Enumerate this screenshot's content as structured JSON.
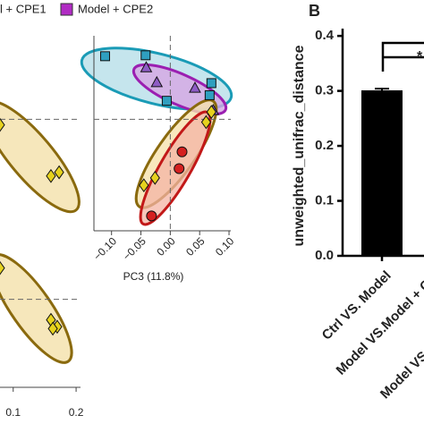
{
  "legend": [
    {
      "name": "l + CPE1"
    },
    {
      "name": "Model +  CPE2",
      "color": "#b12cc4"
    }
  ],
  "chart_data": [
    {
      "type": "scatter",
      "xlim": [
        0.079,
        0.207
      ],
      "ylim": [
        -0.12,
        0.09
      ],
      "zero_lines": true,
      "series": [
        {
          "marker": "diamond",
          "color": "#e6d21e",
          "x": [
            0.079,
            0.16,
            0.173
          ],
          "y": [
            -0.006,
            -0.061,
            -0.057
          ]
        }
      ]
    },
    {
      "type": "scatter",
      "xlim": [
        0.079,
        0.207
      ],
      "ylim": [
        -0.09,
        0.05
      ],
      "zero_lines": true,
      "xticks": [
        0.1,
        0.2
      ],
      "series": [
        {
          "marker": "diamond",
          "color": "#e6d21e",
          "x": [
            0.079,
            0.16,
            0.17,
            0.163
          ],
          "y": [
            0.032,
            -0.021,
            -0.028,
            -0.03
          ]
        }
      ]
    },
    {
      "type": "scatter",
      "xlabel": "PC3 (11.8%)",
      "xlim": [
        -0.13,
        0.103
      ],
      "ylim": [
        -0.12,
        0.09
      ],
      "zero_lines": true,
      "xticks": [
        {
          "value": -0.1,
          "label": "−0.10"
        },
        {
          "value": -0.05,
          "label": "−0.05"
        },
        {
          "value": 0,
          "label": "0.00"
        },
        0.05,
        {
          "value": 0.1,
          "label": "0.10"
        }
      ],
      "series": [
        {
          "marker": "square",
          "color": "#2f9fbf",
          "x": [
            -0.111,
            -0.042,
            -0.006,
            0.07,
            0.067
          ],
          "y": [
            0.068,
            0.069,
            0.02,
            0.039,
            0.026
          ]
        },
        {
          "marker": "triangle",
          "color": "#8e5cc4",
          "x": [
            -0.041,
            -0.023,
            0.042,
            0.073
          ],
          "y": [
            0.056,
            0.04,
            0.034,
            0.01
          ]
        },
        {
          "marker": "circle",
          "color": "#d42020",
          "x": [
            0.02,
            0.015,
            -0.032
          ],
          "y": [
            -0.035,
            -0.053,
            -0.104
          ]
        },
        {
          "marker": "diamond",
          "color": "#e6d21e",
          "x": [
            -0.045,
            -0.026,
            0.061,
            0.07
          ],
          "y": [
            -0.071,
            -0.063,
            -0.003,
            0.008
          ]
        }
      ]
    },
    {
      "type": "bar",
      "title": "B",
      "ylabel": "unweighted_unifrac_distance",
      "annotation": "*",
      "categories": [
        "Ctrl VS. Model",
        "Model VS.Model + C",
        "Model VS"
      ],
      "values": [
        0.301,
        null,
        null
      ],
      "errors": [
        0.003,
        null,
        null
      ],
      "color": "#000000",
      "ylim": [
        0,
        0.41
      ],
      "yticks": [
        {
          "value": 0,
          "label": "0.0"
        },
        0.1,
        0.2,
        0.3,
        0.4
      ]
    }
  ]
}
